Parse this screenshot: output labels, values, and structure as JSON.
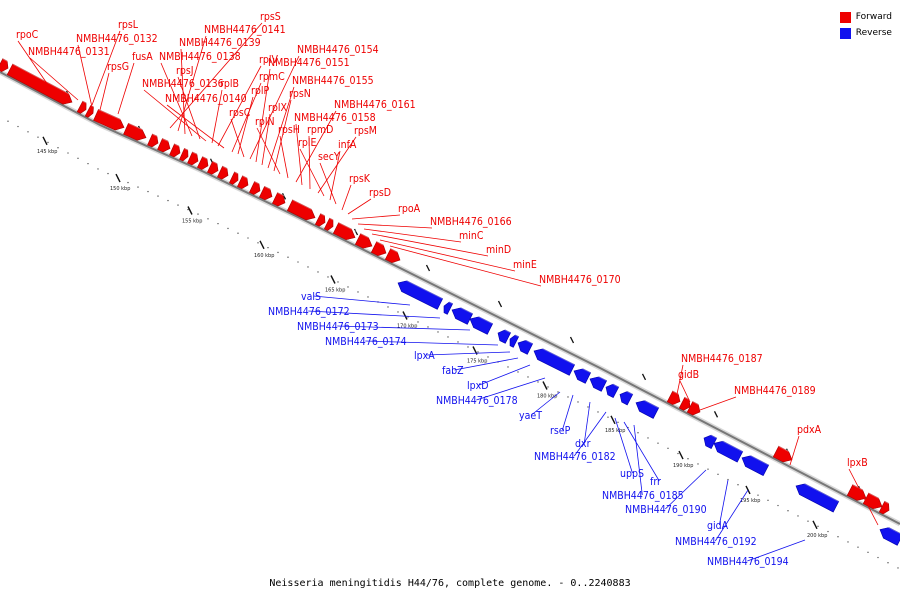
{
  "caption": "Neisseria meningitidis H44/76, complete genome. - 0..2240883",
  "legend": [
    {
      "label": "Forward",
      "color": "#ee0000"
    },
    {
      "label": "Reverse",
      "color": "#1111ee"
    }
  ],
  "colors": {
    "forward": "#ee0000",
    "reverse": "#1111ee",
    "backbone": "#888888"
  },
  "tick_labels": [
    "145 kbp",
    "150 kbp",
    "155 kbp",
    "160 kbp",
    "165 kbp",
    "170 kbp",
    "175 kbp",
    "180 kbp",
    "185 kbp",
    "190 kbp",
    "195 kbp",
    "200 kbp"
  ],
  "forward_labels": [
    "rpoC",
    "NMBH4476_0131",
    "rpsL",
    "NMBH4476_0132",
    "rpsG",
    "fusA",
    "rpsS",
    "NMBH4476_0141",
    "NMBH4476_0139",
    "NMBH4476_0138",
    "rpsJ",
    "NMBH4476_0136",
    "rplB",
    "rplV",
    "NMBH4476_0140",
    "rpmC",
    "rplP",
    "rpsC",
    "NMBH4476_0154",
    "NMBH4476_0151",
    "rplX",
    "NMBH4476_0155",
    "rpsN",
    "rplN",
    "rpsH",
    "NMBH4476_0161",
    "NMBH4476_0158",
    "rpmD",
    "rpsM",
    "rplE",
    "infA",
    "secY",
    "rpsK",
    "rpsD",
    "rpoA",
    "NMBH4476_0166",
    "minC",
    "minD",
    "minE",
    "NMBH4476_0170",
    "NMBH4476_0187",
    "gidB",
    "NMBH4476_0189",
    "pdxA",
    "lpxB"
  ],
  "reverse_labels": [
    "valS",
    "NMBH4476_0172",
    "NMBH4476_0173",
    "NMBH4476_0174",
    "lpxA",
    "fabZ",
    "lpxD",
    "NMBH4476_0178",
    "yaeT",
    "rseP",
    "dxr",
    "NMBH4476_0182",
    "uppS",
    "frr",
    "NMBH4476_0185",
    "NMBH4476_0190",
    "gidA",
    "NMBH4476_0192",
    "NMBH4476_0194"
  ]
}
